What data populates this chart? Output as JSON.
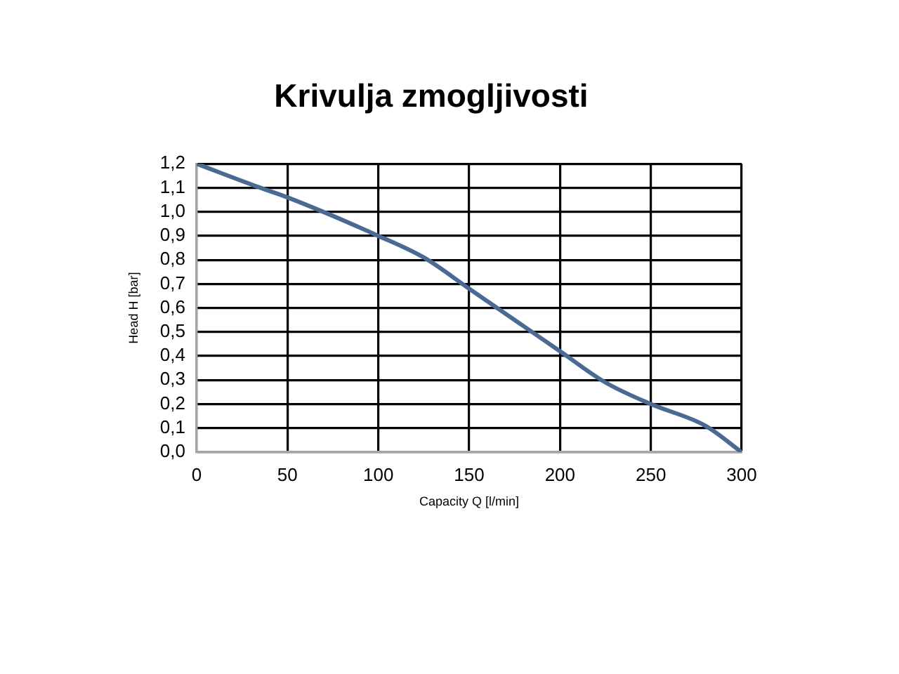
{
  "chart_data": {
    "type": "line",
    "title": "Krivulja zmogljivosti",
    "xlabel": "Capacity Q [l/min]",
    "ylabel": "Head H [bar]",
    "x": [
      0,
      35,
      50,
      100,
      125,
      150,
      175,
      200,
      225,
      250,
      280,
      300
    ],
    "values": [
      1.2,
      1.1,
      1.06,
      0.9,
      0.81,
      0.68,
      0.55,
      0.42,
      0.29,
      0.2,
      0.11,
      0.0
    ],
    "color": "#4a6a94",
    "xlim": [
      0,
      300
    ],
    "xticks": [
      0,
      50,
      100,
      150,
      200,
      250,
      300
    ],
    "ylim": [
      0,
      1.2
    ],
    "yticks": [
      {
        "value": 0,
        "label": "0,0"
      },
      {
        "value": 0.1,
        "label": "0,1"
      },
      {
        "value": 0.2,
        "label": "0,2"
      },
      {
        "value": 0.3,
        "label": "0,3"
      },
      {
        "value": 0.4,
        "label": "0,4"
      },
      {
        "value": 0.5,
        "label": "0,5"
      },
      {
        "value": 0.6,
        "label": "0,6"
      },
      {
        "value": 0.7,
        "label": "0,7"
      },
      {
        "value": 0.8,
        "label": "0,8"
      },
      {
        "value": 0.9,
        "label": "0,9"
      },
      {
        "value": 1.0,
        "label": "1,0"
      },
      {
        "value": 1.1,
        "label": "1,1"
      },
      {
        "value": 1.2,
        "label": "1,2"
      }
    ],
    "grid": true
  }
}
